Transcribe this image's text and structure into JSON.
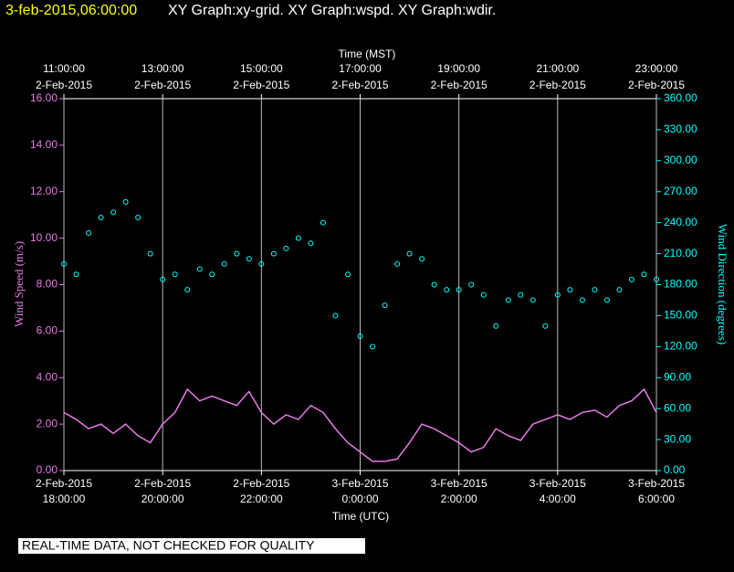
{
  "header": {
    "timestamp": "3-feb-2015,06:00:00",
    "graphs": "XY Graph:xy-grid.  XY Graph:wspd.  XY Graph:wdir."
  },
  "chart_data": {
    "type": "line_scatter",
    "xlabel_top": "Time (MST)",
    "xlabel": "Time (UTC)",
    "ylabel": "Wind Speed (m/s)",
    "y2label": "Wind Direction (degrees)",
    "xlim": [
      "2015-02-02T18:00Z",
      "2015-02-03T06:00Z"
    ],
    "xticks": [
      {
        "value": "2015-02-02T18:00Z",
        "label": [
          "2-Feb-2015",
          "18:00:00"
        ]
      },
      {
        "value": "2015-02-02T20:00Z",
        "label": [
          "2-Feb-2015",
          "20:00:00"
        ]
      },
      {
        "value": "2015-02-02T22:00Z",
        "label": [
          "2-Feb-2015",
          "22:00:00"
        ]
      },
      {
        "value": "2015-02-03T00:00Z",
        "label": [
          "3-Feb-2015",
          "0:00:00"
        ]
      },
      {
        "value": "2015-02-03T02:00Z",
        "label": [
          "3-Feb-2015",
          "2:00:00"
        ]
      },
      {
        "value": "2015-02-03T04:00Z",
        "label": [
          "3-Feb-2015",
          "4:00:00"
        ]
      },
      {
        "value": "2015-02-03T06:00Z",
        "label": [
          "3-Feb-2015",
          "6:00:00"
        ]
      }
    ],
    "x2ticks": [
      {
        "value": "2015-02-02T11:00-07:00",
        "label": [
          "11:00:00",
          "2-Feb-2015"
        ]
      },
      {
        "value": "2015-02-02T13:00-07:00",
        "label": [
          "13:00:00",
          "2-Feb-2015"
        ]
      },
      {
        "value": "2015-02-02T15:00-07:00",
        "label": [
          "15:00:00",
          "2-Feb-2015"
        ]
      },
      {
        "value": "2015-02-02T17:00-07:00",
        "label": [
          "17:00:00",
          "2-Feb-2015"
        ]
      },
      {
        "value": "2015-02-02T19:00-07:00",
        "label": [
          "19:00:00",
          "2-Feb-2015"
        ]
      },
      {
        "value": "2015-02-02T21:00-07:00",
        "label": [
          "21:00:00",
          "2-Feb-2015"
        ]
      },
      {
        "value": "2015-02-02T23:00-07:00",
        "label": [
          "23:00:00",
          "2-Feb-2015"
        ]
      }
    ],
    "grid": true,
    "ylim": [
      0,
      16
    ],
    "yticks": [
      {
        "value": 0,
        "label": "0.00"
      },
      {
        "value": 2,
        "label": "2.00"
      },
      {
        "value": 4,
        "label": "4.00"
      },
      {
        "value": 6,
        "label": "6.00"
      },
      {
        "value": 8,
        "label": "8.00"
      },
      {
        "value": 10,
        "label": "10.00"
      },
      {
        "value": 12,
        "label": "12.00"
      },
      {
        "value": 14,
        "label": "14.00"
      },
      {
        "value": 16,
        "label": "16.00"
      }
    ],
    "y2lim": [
      0,
      360
    ],
    "y2ticks": [
      {
        "value": 0,
        "label": "0.00"
      },
      {
        "value": 30,
        "label": "30.00"
      },
      {
        "value": 60,
        "label": "60.00"
      },
      {
        "value": 90,
        "label": "90.00"
      },
      {
        "value": 120,
        "label": "120.00"
      },
      {
        "value": 150,
        "label": "150.00"
      },
      {
        "value": 180,
        "label": "180.00"
      },
      {
        "value": 210,
        "label": "210.00"
      },
      {
        "value": 240,
        "label": "240.00"
      },
      {
        "value": 270,
        "label": "270.00"
      },
      {
        "value": 300,
        "label": "300.00"
      },
      {
        "value": 330,
        "label": "330.00"
      },
      {
        "value": 360,
        "label": "360.00"
      }
    ],
    "x": [
      "2015-02-02T18:00Z",
      "2015-02-02T18:15Z",
      "2015-02-02T18:30Z",
      "2015-02-02T18:45Z",
      "2015-02-02T19:00Z",
      "2015-02-02T19:15Z",
      "2015-02-02T19:30Z",
      "2015-02-02T19:45Z",
      "2015-02-02T20:00Z",
      "2015-02-02T20:15Z",
      "2015-02-02T20:30Z",
      "2015-02-02T20:45Z",
      "2015-02-02T21:00Z",
      "2015-02-02T21:15Z",
      "2015-02-02T21:30Z",
      "2015-02-02T21:45Z",
      "2015-02-02T22:00Z",
      "2015-02-02T22:15Z",
      "2015-02-02T22:30Z",
      "2015-02-02T22:45Z",
      "2015-02-02T23:00Z",
      "2015-02-02T23:15Z",
      "2015-02-02T23:30Z",
      "2015-02-02T23:45Z",
      "2015-02-03T00:00Z",
      "2015-02-03T00:15Z",
      "2015-02-03T00:30Z",
      "2015-02-03T00:45Z",
      "2015-02-03T01:00Z",
      "2015-02-03T01:15Z",
      "2015-02-03T01:30Z",
      "2015-02-03T01:45Z",
      "2015-02-03T02:00Z",
      "2015-02-03T02:15Z",
      "2015-02-03T02:30Z",
      "2015-02-03T02:45Z",
      "2015-02-03T03:00Z",
      "2015-02-03T03:15Z",
      "2015-02-03T03:30Z",
      "2015-02-03T03:45Z",
      "2015-02-03T04:00Z",
      "2015-02-03T04:15Z",
      "2015-02-03T04:30Z",
      "2015-02-03T04:45Z",
      "2015-02-03T05:00Z",
      "2015-02-03T05:15Z",
      "2015-02-03T05:30Z",
      "2015-02-03T05:45Z",
      "2015-02-03T06:00Z"
    ],
    "series": [
      {
        "name": "wspd",
        "kind": "line",
        "color": "#e87ae8",
        "values": [
          2.5,
          2.2,
          1.8,
          2.0,
          1.6,
          2.0,
          1.5,
          1.2,
          2.0,
          2.5,
          3.5,
          3.0,
          3.2,
          3.0,
          2.8,
          3.4,
          2.5,
          2.0,
          2.4,
          2.2,
          2.8,
          2.5,
          1.8,
          1.2,
          0.8,
          0.4,
          0.4,
          0.5,
          1.2,
          2.0,
          1.8,
          1.5,
          1.2,
          0.8,
          1.0,
          1.8,
          1.5,
          1.3,
          2.0,
          2.2,
          2.4,
          2.2,
          2.5,
          2.6,
          2.3,
          2.8,
          3.0,
          3.5,
          2.5
        ]
      },
      {
        "name": "wdir",
        "kind": "scatter",
        "axis": "y2",
        "color": "#00ffff",
        "values": [
          200,
          190,
          230,
          245,
          250,
          260,
          245,
          210,
          185,
          190,
          175,
          195,
          190,
          200,
          210,
          205,
          200,
          210,
          215,
          225,
          220,
          240,
          150,
          190,
          130,
          120,
          160,
          200,
          210,
          205,
          180,
          175,
          175,
          180,
          170,
          140,
          165,
          170,
          165,
          140,
          170,
          175,
          165,
          175,
          165,
          175,
          185,
          190,
          185
        ]
      }
    ]
  },
  "footer": {
    "notice": "REAL-TIME DATA, NOT CHECKED FOR QUALITY"
  }
}
